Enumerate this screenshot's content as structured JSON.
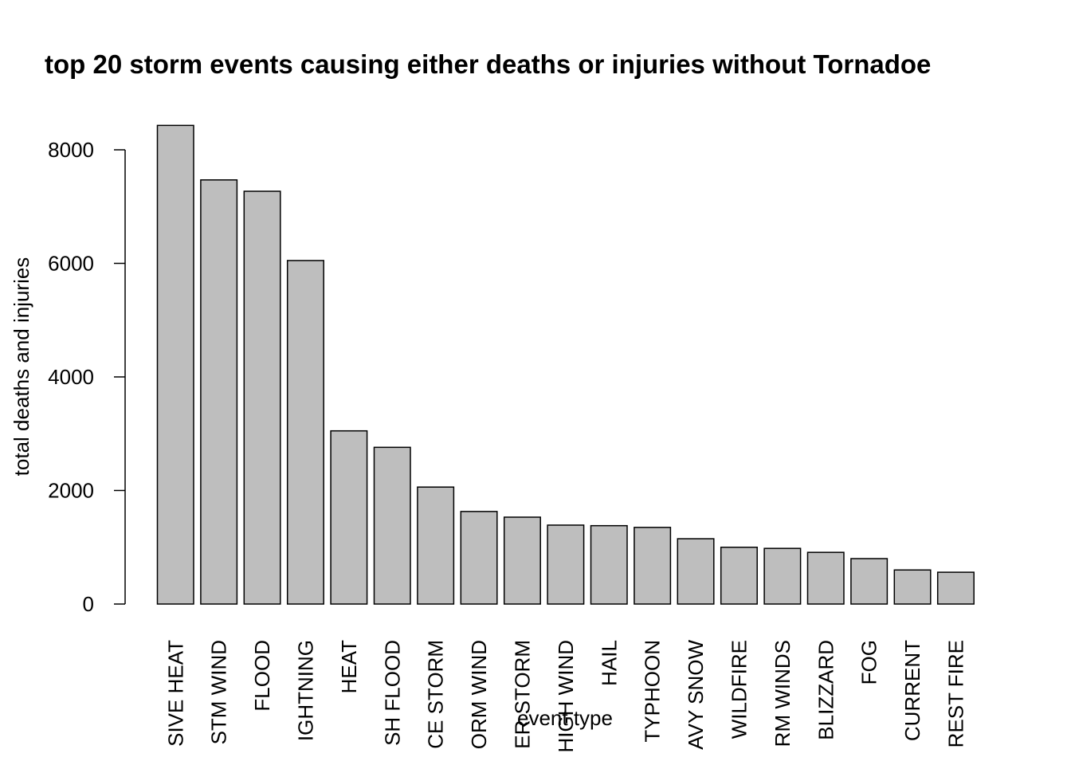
{
  "chart_data": {
    "type": "bar",
    "title": "top 20 storm events causing either deaths or injuries without Tornadoe",
    "x_label": "event type",
    "y_label": "total deaths and injuries",
    "categories": [
      "SIVE HEAT",
      "STM WIND",
      "FLOOD",
      "IGHTNING",
      "HEAT",
      "SH FLOOD",
      "CE STORM",
      "ORM WIND",
      "ER STORM",
      "HIGH WIND",
      "HAIL",
      "TYPHOON",
      "AVY SNOW",
      "WILDFIRE",
      "RM WINDS",
      "BLIZZARD",
      "FOG",
      "CURRENT",
      "REST FIRE"
    ],
    "values": [
      8430,
      7470,
      7270,
      6050,
      3050,
      2760,
      2060,
      1630,
      1530,
      1390,
      1380,
      1350,
      1150,
      1000,
      980,
      910,
      800,
      600,
      560
    ],
    "color": "#bebebe",
    "ylim": [
      0,
      8000
    ],
    "yticks": [
      0,
      2000,
      4000,
      6000,
      8000
    ]
  }
}
